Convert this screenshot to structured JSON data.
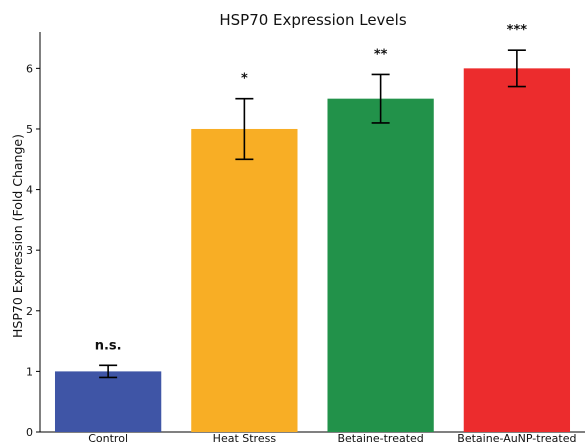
{
  "chart_data": {
    "type": "bar",
    "title": "HSP70 Expression Levels",
    "xlabel": "",
    "ylabel": "HSP70 Expression (Fold Change)",
    "ylim": [
      0,
      6.6
    ],
    "yticks": [
      0,
      1,
      2,
      3,
      4,
      5,
      6
    ],
    "grid": false,
    "categories": [
      "Control",
      "Heat Stress",
      "Betaine-treated",
      "Betaine-AuNP-treated"
    ],
    "values": [
      1.0,
      5.0,
      5.5,
      6.0
    ],
    "errors": [
      0.1,
      0.5,
      0.4,
      0.3
    ],
    "significance": [
      "n.s.",
      "*",
      "**",
      "***"
    ],
    "colors": [
      "#3f55a6",
      "#f8ae25",
      "#22924a",
      "#ec2c2d"
    ]
  }
}
